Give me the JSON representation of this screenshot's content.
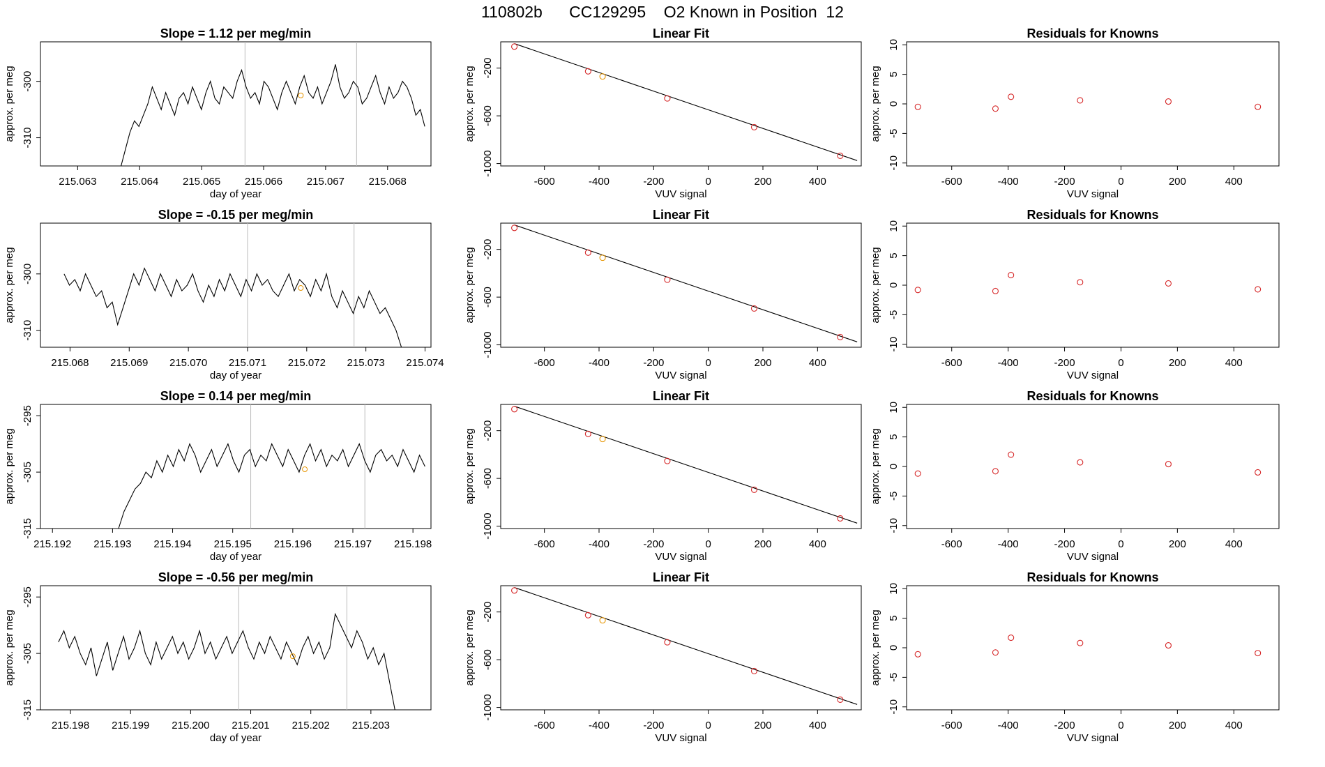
{
  "page_title": "110802b      CC129295    O2 Known in Position  12",
  "colors": {
    "series": "#000000",
    "marker": "#d62728",
    "highlight": "#e69500",
    "vline": "#bbbbbb",
    "axes": "#000000"
  },
  "chart_data": [
    {
      "type": "line",
      "panel": "timeseries",
      "row": 0,
      "title": "Slope =  1.12  per meg/min",
      "xlabel": "day of year",
      "ylabel": "approx. per meg",
      "xlim": [
        215.0624,
        215.0687
      ],
      "ylim": [
        -315,
        -293
      ],
      "xticks": [
        215.063,
        215.064,
        215.065,
        215.066,
        215.067,
        215.068
      ],
      "xtick_labels": [
        "215.063",
        "215.064",
        "215.065",
        "215.066",
        "215.067",
        "215.068"
      ],
      "yticks": [
        -310,
        -300
      ],
      "ytick_labels": [
        "-310",
        "-300"
      ],
      "vlines": [
        215.0657,
        215.0675
      ],
      "highlight_point": [
        215.0666,
        -302.5
      ],
      "series": {
        "x_start": 215.0637,
        "x_end": 215.0686,
        "y": [
          -315,
          -312,
          -309,
          -307,
          -308,
          -306,
          -304,
          -301,
          -303,
          -305,
          -302,
          -304,
          -306,
          -303,
          -302,
          -304,
          -301,
          -303,
          -305,
          -302,
          -300,
          -303,
          -304,
          -301,
          -302,
          -303,
          -300,
          -298,
          -301,
          -303,
          -302,
          -304,
          -300,
          -301,
          -303,
          -305,
          -302,
          -300,
          -302,
          -304,
          -301,
          -299,
          -302,
          -303,
          -301,
          -304,
          -302,
          -300,
          -297,
          -301,
          -303,
          -302,
          -300,
          -301,
          -304,
          -303,
          -301,
          -299,
          -302,
          -304,
          -301,
          -303,
          -302,
          -300,
          -301,
          -303,
          -306,
          -305,
          -308
        ]
      }
    },
    {
      "type": "line",
      "panel": "timeseries",
      "row": 1,
      "title": "Slope =  -0.15  per meg/min",
      "xlabel": "day of year",
      "ylabel": "approx. per meg",
      "xlim": [
        215.0675,
        215.0741
      ],
      "ylim": [
        -313,
        -291
      ],
      "xticks": [
        215.068,
        215.069,
        215.07,
        215.071,
        215.072,
        215.073,
        215.074
      ],
      "xtick_labels": [
        "215.068",
        "215.069",
        "215.070",
        "215.071",
        "215.072",
        "215.073",
        "215.074"
      ],
      "yticks": [
        -310,
        -300
      ],
      "ytick_labels": [
        "-310",
        "-300"
      ],
      "vlines": [
        215.071,
        215.0728
      ],
      "highlight_point": [
        215.0719,
        -302.5
      ],
      "series": {
        "x_start": 215.0679,
        "x_end": 215.0736,
        "y": [
          -300,
          -302,
          -301,
          -303,
          -300,
          -302,
          -304,
          -303,
          -306,
          -305,
          -309,
          -306,
          -303,
          -300,
          -302,
          -299,
          -301,
          -303,
          -300,
          -302,
          -304,
          -301,
          -303,
          -302,
          -300,
          -303,
          -305,
          -302,
          -304,
          -301,
          -303,
          -300,
          -302,
          -304,
          -301,
          -303,
          -300,
          -302,
          -301,
          -303,
          -304,
          -302,
          -300,
          -303,
          -301,
          -302,
          -304,
          -301,
          -303,
          -300,
          -304,
          -306,
          -303,
          -305,
          -307,
          -304,
          -306,
          -303,
          -305,
          -307,
          -306,
          -308,
          -310,
          -313
        ]
      }
    },
    {
      "type": "line",
      "panel": "timeseries",
      "row": 2,
      "title": "Slope =  0.14  per meg/min",
      "xlabel": "day of year",
      "ylabel": "approx. per meg",
      "xlim": [
        215.1918,
        215.1983
      ],
      "ylim": [
        -315,
        -293
      ],
      "xticks": [
        215.192,
        215.193,
        215.194,
        215.195,
        215.196,
        215.197,
        215.198
      ],
      "xtick_labels": [
        "215.192",
        "215.193",
        "215.194",
        "215.195",
        "215.196",
        "215.197",
        "215.198"
      ],
      "yticks": [
        -315,
        -305,
        -295
      ],
      "ytick_labels": [
        "-315",
        "-305",
        "-295"
      ],
      "vlines": [
        215.1953,
        215.1972
      ],
      "highlight_point": [
        215.1962,
        -304.5
      ],
      "series": {
        "x_start": 215.1931,
        "x_end": 215.1982,
        "y": [
          -315,
          -312,
          -310,
          -308,
          -307,
          -305,
          -306,
          -303,
          -305,
          -302,
          -304,
          -301,
          -303,
          -300,
          -302,
          -305,
          -303,
          -301,
          -304,
          -302,
          -300,
          -303,
          -305,
          -302,
          -301,
          -304,
          -302,
          -303,
          -300,
          -302,
          -304,
          -301,
          -303,
          -305,
          -302,
          -300,
          -303,
          -301,
          -304,
          -302,
          -303,
          -301,
          -304,
          -302,
          -300,
          -303,
          -305,
          -302,
          -301,
          -303,
          -302,
          -304,
          -301,
          -303,
          -305,
          -302,
          -304
        ]
      }
    },
    {
      "type": "line",
      "panel": "timeseries",
      "row": 3,
      "title": "Slope =  -0.56  per meg/min",
      "xlabel": "day of year",
      "ylabel": "approx. per meg",
      "xlim": [
        215.1975,
        215.204
      ],
      "ylim": [
        -315,
        -293
      ],
      "xticks": [
        215.198,
        215.199,
        215.2,
        215.201,
        215.202,
        215.203
      ],
      "xtick_labels": [
        "215.198",
        "215.199",
        "215.200",
        "215.201",
        "215.202",
        "215.203"
      ],
      "yticks": [
        -315,
        -305,
        -295
      ],
      "ytick_labels": [
        "-315",
        "-305",
        "-295"
      ],
      "vlines": [
        215.2008,
        215.2026
      ],
      "highlight_point": [
        215.2017,
        -305.5
      ],
      "series": {
        "x_start": 215.1978,
        "x_end": 215.2034,
        "y": [
          -303,
          -301,
          -304,
          -302,
          -305,
          -307,
          -304,
          -309,
          -306,
          -303,
          -308,
          -305,
          -302,
          -306,
          -304,
          -301,
          -305,
          -307,
          -303,
          -306,
          -304,
          -302,
          -305,
          -303,
          -306,
          -304,
          -301,
          -305,
          -303,
          -306,
          -304,
          -302,
          -305,
          -303,
          -301,
          -304,
          -306,
          -303,
          -305,
          -302,
          -304,
          -306,
          -303,
          -305,
          -307,
          -304,
          -302,
          -305,
          -303,
          -306,
          -304,
          -298,
          -300,
          -302,
          -304,
          -301,
          -303,
          -306,
          -304,
          -307,
          -305,
          -310,
          -315
        ]
      }
    },
    {
      "type": "scatter",
      "panel": "fit",
      "row": 0,
      "title": "Linear Fit",
      "xlabel": "VUV signal",
      "ylabel": "approx. per meg",
      "xlim": [
        -760,
        560
      ],
      "ylim": [
        -1020,
        20
      ],
      "xticks": [
        -600,
        -400,
        -200,
        0,
        200,
        400
      ],
      "xtick_labels": [
        "-600",
        "-400",
        "-200",
        "0",
        "200",
        "400"
      ],
      "yticks": [
        -1000,
        -600,
        -200
      ],
      "ytick_labels": [
        "-1000",
        "-600",
        "-200"
      ],
      "fit_line": [
        [
          -710,
          5
        ],
        [
          545,
          -975
        ]
      ],
      "points": [
        [
          -710,
          -20
        ],
        [
          -440,
          -227
        ],
        [
          -387,
          -270
        ],
        [
          -150,
          -454
        ],
        [
          168,
          -695
        ],
        [
          483,
          -935
        ]
      ],
      "highlight_point": [
        -387,
        -270
      ]
    },
    {
      "type": "scatter",
      "panel": "fit",
      "row": 1,
      "title": "Linear Fit",
      "xlabel": "VUV signal",
      "ylabel": "approx. per meg",
      "xlim": [
        -760,
        560
      ],
      "ylim": [
        -1020,
        20
      ],
      "xticks": [
        -600,
        -400,
        -200,
        0,
        200,
        400
      ],
      "xtick_labels": [
        "-600",
        "-400",
        "-200",
        "0",
        "200",
        "400"
      ],
      "yticks": [
        -1000,
        -600,
        -200
      ],
      "ytick_labels": [
        "-1000",
        "-600",
        "-200"
      ],
      "fit_line": [
        [
          -710,
          5
        ],
        [
          545,
          -975
        ]
      ],
      "points": [
        [
          -710,
          -20
        ],
        [
          -440,
          -227
        ],
        [
          -387,
          -270
        ],
        [
          -150,
          -454
        ],
        [
          168,
          -695
        ],
        [
          483,
          -935
        ]
      ],
      "highlight_point": [
        -387,
        -270
      ]
    },
    {
      "type": "scatter",
      "panel": "fit",
      "row": 2,
      "title": "Linear Fit",
      "xlabel": "VUV signal",
      "ylabel": "approx. per meg",
      "xlim": [
        -760,
        560
      ],
      "ylim": [
        -1020,
        20
      ],
      "xticks": [
        -600,
        -400,
        -200,
        0,
        200,
        400
      ],
      "xtick_labels": [
        "-600",
        "-400",
        "-200",
        "0",
        "200",
        "400"
      ],
      "yticks": [
        -1000,
        -600,
        -200
      ],
      "ytick_labels": [
        "-1000",
        "-600",
        "-200"
      ],
      "fit_line": [
        [
          -710,
          5
        ],
        [
          545,
          -975
        ]
      ],
      "points": [
        [
          -710,
          -20
        ],
        [
          -440,
          -227
        ],
        [
          -387,
          -270
        ],
        [
          -150,
          -454
        ],
        [
          168,
          -695
        ],
        [
          483,
          -935
        ]
      ],
      "highlight_point": [
        -387,
        -270
      ]
    },
    {
      "type": "scatter",
      "panel": "fit",
      "row": 3,
      "title": "Linear Fit",
      "xlabel": "VUV signal",
      "ylabel": "approx. per meg",
      "xlim": [
        -760,
        560
      ],
      "ylim": [
        -1020,
        20
      ],
      "xticks": [
        -600,
        -400,
        -200,
        0,
        200,
        400
      ],
      "xtick_labels": [
        "-600",
        "-400",
        "-200",
        "0",
        "200",
        "400"
      ],
      "yticks": [
        -1000,
        -600,
        -200
      ],
      "ytick_labels": [
        "-1000",
        "-600",
        "-200"
      ],
      "fit_line": [
        [
          -710,
          5
        ],
        [
          545,
          -975
        ]
      ],
      "points": [
        [
          -710,
          -20
        ],
        [
          -440,
          -227
        ],
        [
          -387,
          -270
        ],
        [
          -150,
          -454
        ],
        [
          168,
          -695
        ],
        [
          483,
          -935
        ]
      ],
      "highlight_point": [
        -387,
        -270
      ]
    },
    {
      "type": "scatter",
      "panel": "residuals",
      "row": 0,
      "title": "Residuals for Knowns",
      "xlabel": "VUV signal",
      "ylabel": "approx. per meg",
      "xlim": [
        -760,
        560
      ],
      "ylim": [
        -10.5,
        10.5
      ],
      "xticks": [
        -600,
        -400,
        -200,
        0,
        200,
        400
      ],
      "xtick_labels": [
        "-600",
        "-400",
        "-200",
        "0",
        "200",
        "400"
      ],
      "yticks": [
        -10,
        -5,
        0,
        5,
        10
      ],
      "ytick_labels": [
        "-10",
        "-5",
        "0",
        "5",
        "10"
      ],
      "points": [
        [
          -720,
          -0.5
        ],
        [
          -445,
          -0.8
        ],
        [
          -390,
          1.2
        ],
        [
          -145,
          0.6
        ],
        [
          168,
          0.4
        ],
        [
          485,
          -0.5
        ]
      ]
    },
    {
      "type": "scatter",
      "panel": "residuals",
      "row": 1,
      "title": "Residuals for Knowns",
      "xlabel": "VUV signal",
      "ylabel": "approx. per meg",
      "xlim": [
        -760,
        560
      ],
      "ylim": [
        -10.5,
        10.5
      ],
      "xticks": [
        -600,
        -400,
        -200,
        0,
        200,
        400
      ],
      "xtick_labels": [
        "-600",
        "-400",
        "-200",
        "0",
        "200",
        "400"
      ],
      "yticks": [
        -10,
        -5,
        0,
        5,
        10
      ],
      "ytick_labels": [
        "-10",
        "-5",
        "0",
        "5",
        "10"
      ],
      "points": [
        [
          -720,
          -0.8
        ],
        [
          -445,
          -1.0
        ],
        [
          -390,
          1.7
        ],
        [
          -145,
          0.5
        ],
        [
          168,
          0.3
        ],
        [
          485,
          -0.7
        ]
      ]
    },
    {
      "type": "scatter",
      "panel": "residuals",
      "row": 2,
      "title": "Residuals for Knowns",
      "xlabel": "VUV signal",
      "ylabel": "approx. per meg",
      "xlim": [
        -760,
        560
      ],
      "ylim": [
        -10.5,
        10.5
      ],
      "xticks": [
        -600,
        -400,
        -200,
        0,
        200,
        400
      ],
      "xtick_labels": [
        "-600",
        "-400",
        "-200",
        "0",
        "200",
        "400"
      ],
      "yticks": [
        -10,
        -5,
        0,
        5,
        10
      ],
      "ytick_labels": [
        "-10",
        "-5",
        "0",
        "5",
        "10"
      ],
      "points": [
        [
          -720,
          -1.2
        ],
        [
          -445,
          -0.8
        ],
        [
          -390,
          2.0
        ],
        [
          -145,
          0.7
        ],
        [
          168,
          0.4
        ],
        [
          485,
          -1.0
        ]
      ]
    },
    {
      "type": "scatter",
      "panel": "residuals",
      "row": 3,
      "title": "Residuals for Knowns",
      "xlabel": "VUV signal",
      "ylabel": "approx. per meg",
      "xlim": [
        -760,
        560
      ],
      "ylim": [
        -10.5,
        10.5
      ],
      "xticks": [
        -600,
        -400,
        -200,
        0,
        200,
        400
      ],
      "xtick_labels": [
        "-600",
        "-400",
        "-200",
        "0",
        "200",
        "400"
      ],
      "yticks": [
        -10,
        -5,
        0,
        5,
        10
      ],
      "ytick_labels": [
        "-10",
        "-5",
        "0",
        "5",
        "10"
      ],
      "points": [
        [
          -720,
          -1.1
        ],
        [
          -445,
          -0.8
        ],
        [
          -390,
          1.7
        ],
        [
          -145,
          0.8
        ],
        [
          168,
          0.4
        ],
        [
          485,
          -0.9
        ]
      ]
    }
  ]
}
